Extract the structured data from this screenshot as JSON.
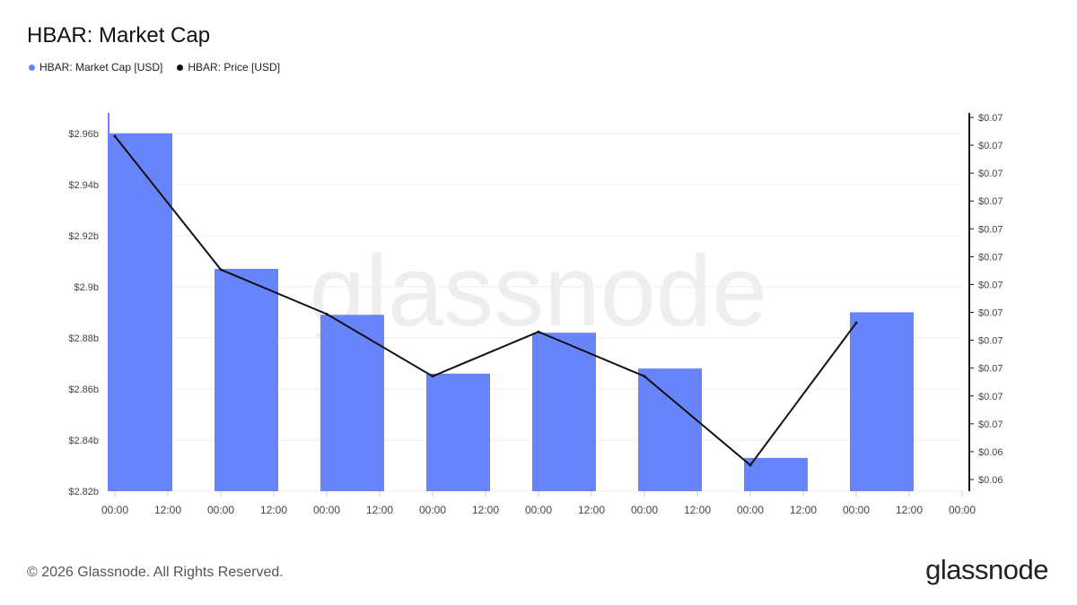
{
  "header": {
    "title": "HBAR: Market Cap"
  },
  "legend": [
    {
      "label": "HBAR: Market Cap [USD]",
      "color": "#6884fa"
    },
    {
      "label": "HBAR: Price [USD]",
      "color": "#111111"
    }
  ],
  "footer": {
    "copyright": "© 2026 Glassnode. All Rights Reserved.",
    "brand": "glassnode",
    "watermark": "glassnode"
  },
  "chart_data": {
    "type": "bar",
    "title": "HBAR: Market Cap",
    "x_tick_labels": [
      "00:00",
      "12:00",
      "00:00",
      "12:00",
      "00:00",
      "12:00",
      "00:00",
      "12:00",
      "00:00",
      "12:00",
      "00:00",
      "12:00",
      "00:00",
      "12:00",
      "00:00",
      "12:00",
      "00:00"
    ],
    "y_left_tick_labels": [
      "$2.96b",
      "$2.94b",
      "$2.92b",
      "$2.9b",
      "$2.88b",
      "$2.86b",
      "$2.84b",
      "$2.82b"
    ],
    "y_left_ticks": [
      2.96,
      2.94,
      2.92,
      2.9,
      2.88,
      2.86,
      2.84,
      2.82
    ],
    "y_left_range": [
      2.82,
      2.968
    ],
    "y_right_tick_labels": [
      "$0.07",
      "$0.07",
      "$0.07",
      "$0.07",
      "$0.07",
      "$0.07",
      "$0.07",
      "$0.07",
      "$0.07",
      "$0.07",
      "$0.07",
      "$0.07",
      "$0.06",
      "$0.06"
    ],
    "grid": true,
    "legend_position": "top-left",
    "series": [
      {
        "name": "HBAR: Market Cap [USD]",
        "type": "bar",
        "axis": "left",
        "unit": "billion USD",
        "color": "#6884fa",
        "x_tick_index": [
          0,
          2,
          4,
          6,
          8,
          10,
          12,
          14
        ],
        "values": [
          2.96,
          2.907,
          2.889,
          2.866,
          2.882,
          2.868,
          2.833,
          2.89
        ]
      },
      {
        "name": "HBAR: Price [USD]",
        "type": "line",
        "axis": "right",
        "unit": "USD",
        "color": "#111111",
        "x_tick_index": [
          0,
          2,
          4,
          6,
          8,
          10,
          12,
          14
        ],
        "values": [
          0.0719,
          0.0704,
          0.0699,
          0.0692,
          0.0697,
          0.0692,
          0.0682,
          0.0698
        ]
      }
    ]
  }
}
